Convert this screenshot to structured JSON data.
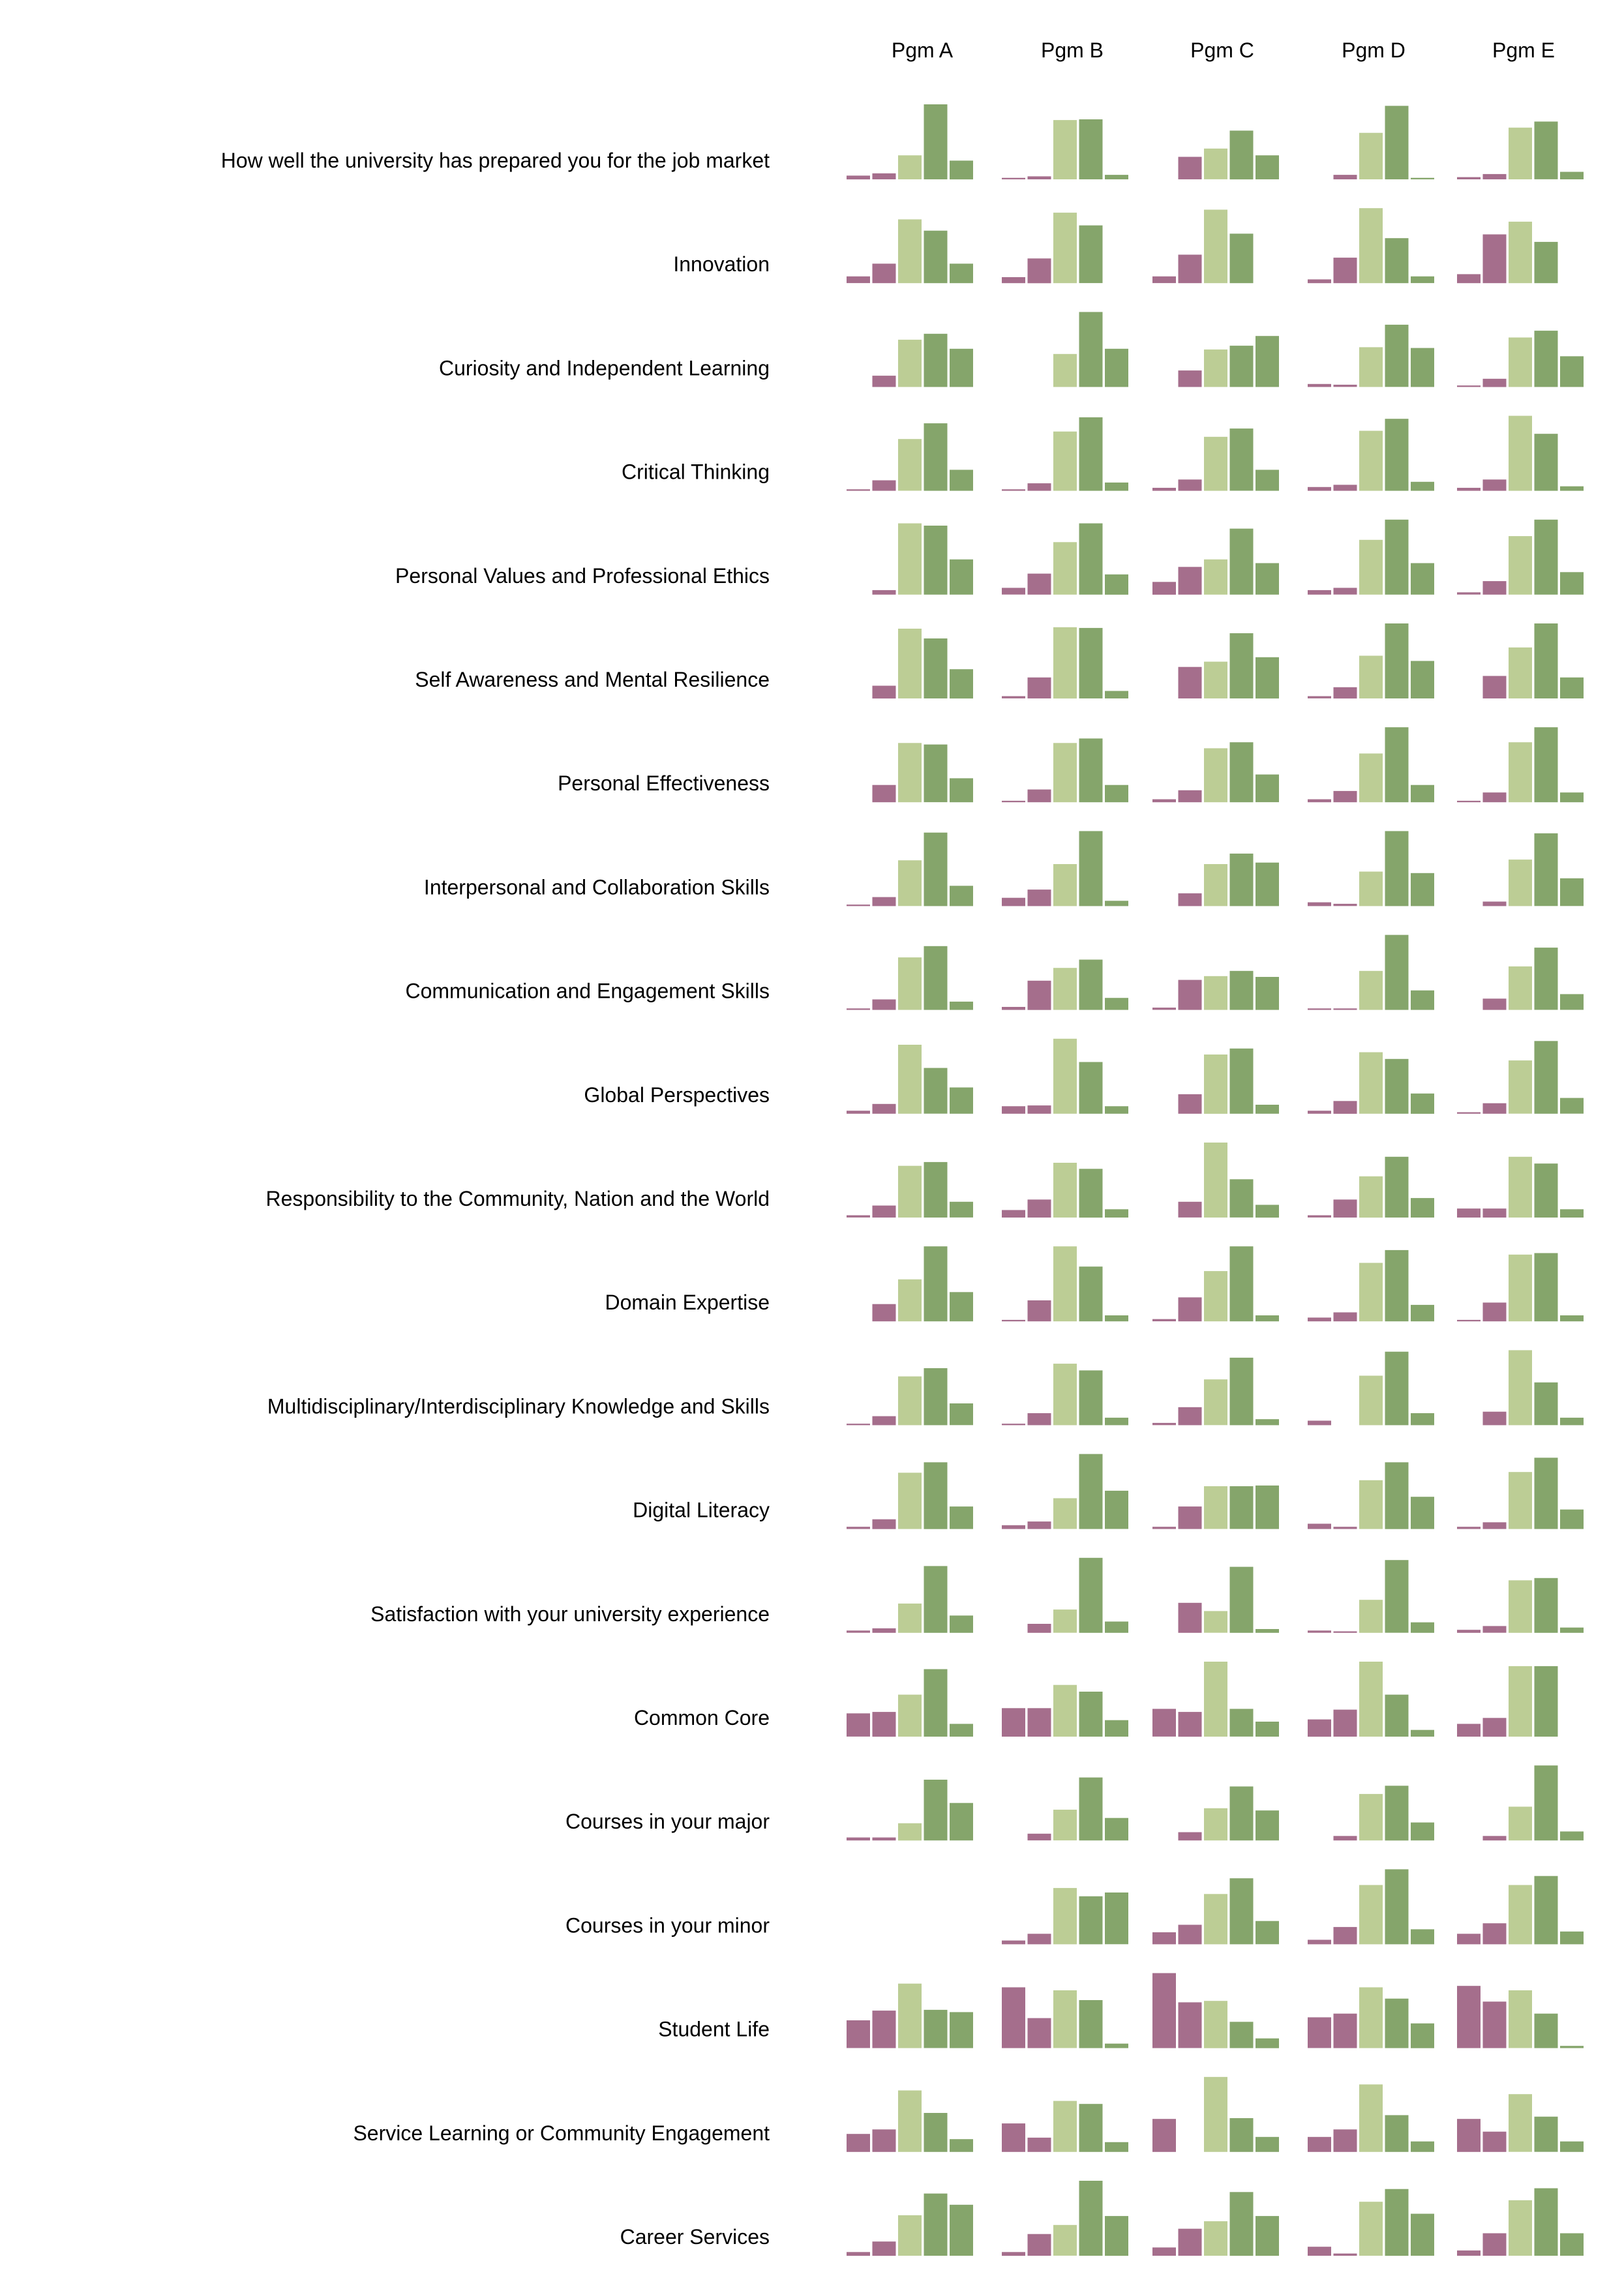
{
  "chart_data": {
    "type": "bar",
    "title": "",
    "colors": [
      "#a56e8c",
      "#a56e8c",
      "#bccd95",
      "#85a56b",
      "#85a56b"
    ],
    "columns": [
      "Pgm A",
      "Pgm B",
      "Pgm C",
      "Pgm D",
      "Pgm E"
    ],
    "rows": [
      {
        "label": "How well the university has prepared you for the job market",
        "values": [
          [
            5,
            8,
            32,
            100,
            25
          ],
          [
            2,
            4,
            79,
            80,
            6
          ],
          [
            0,
            30,
            41,
            65,
            32
          ],
          [
            0,
            6,
            62,
            98,
            2
          ],
          [
            3,
            7,
            69,
            77,
            10
          ]
        ]
      },
      {
        "label": "Innovation",
        "values": [
          [
            9,
            26,
            85,
            70,
            26
          ],
          [
            8,
            33,
            94,
            77,
            0
          ],
          [
            9,
            38,
            98,
            66,
            0
          ],
          [
            5,
            34,
            100,
            60,
            9
          ],
          [
            12,
            65,
            82,
            55,
            0
          ]
        ]
      },
      {
        "label": "Curiosity and Independent Learning",
        "values": [
          [
            0,
            15,
            63,
            71,
            51
          ],
          [
            0,
            0,
            44,
            100,
            51
          ],
          [
            0,
            22,
            50,
            55,
            68
          ],
          [
            4,
            3,
            53,
            83,
            52
          ],
          [
            2,
            11,
            66,
            75,
            41
          ]
        ]
      },
      {
        "label": "Critical Thinking",
        "values": [
          [
            2,
            14,
            69,
            90,
            28
          ],
          [
            2,
            10,
            79,
            98,
            11
          ],
          [
            4,
            15,
            72,
            83,
            28
          ],
          [
            5,
            8,
            80,
            96,
            12
          ],
          [
            4,
            15,
            100,
            76,
            6
          ]
        ]
      },
      {
        "label": "Personal Values and Professional Ethics",
        "values": [
          [
            0,
            6,
            95,
            92,
            47
          ],
          [
            9,
            28,
            70,
            95,
            27
          ],
          [
            17,
            37,
            47,
            88,
            42
          ],
          [
            6,
            9,
            73,
            100,
            42
          ],
          [
            3,
            18,
            78,
            100,
            30
          ]
        ]
      },
      {
        "label": "Self Awareness and Mental Resilience",
        "values": [
          [
            0,
            17,
            93,
            80,
            39
          ],
          [
            3,
            28,
            95,
            94,
            10
          ],
          [
            0,
            42,
            49,
            87,
            55
          ],
          [
            3,
            15,
            57,
            100,
            50
          ],
          [
            0,
            30,
            68,
            100,
            28
          ]
        ]
      },
      {
        "label": "Personal Effectiveness",
        "values": [
          [
            0,
            23,
            79,
            77,
            32
          ],
          [
            2,
            17,
            79,
            85,
            23
          ],
          [
            4,
            16,
            72,
            80,
            37
          ],
          [
            4,
            15,
            65,
            100,
            23
          ],
          [
            2,
            13,
            80,
            100,
            13
          ]
        ]
      },
      {
        "label": "Interpersonal and Collaboration Skills",
        "values": [
          [
            2,
            12,
            61,
            98,
            27
          ],
          [
            11,
            22,
            56,
            100,
            7
          ],
          [
            0,
            17,
            56,
            70,
            58
          ],
          [
            5,
            3,
            46,
            100,
            44
          ],
          [
            0,
            6,
            62,
            97,
            37
          ]
        ]
      },
      {
        "label": "Communication and Engagement Skills",
        "values": [
          [
            2,
            14,
            70,
            85,
            11
          ],
          [
            4,
            39,
            56,
            67,
            16
          ],
          [
            3,
            40,
            45,
            52,
            44
          ],
          [
            2,
            2,
            52,
            100,
            26
          ],
          [
            0,
            15,
            58,
            83,
            21
          ]
        ]
      },
      {
        "label": "Global Perspectives",
        "values": [
          [
            4,
            13,
            92,
            61,
            35
          ],
          [
            10,
            11,
            100,
            69,
            10
          ],
          [
            0,
            26,
            79,
            87,
            12
          ],
          [
            4,
            17,
            82,
            73,
            27
          ],
          [
            2,
            14,
            71,
            97,
            21
          ]
        ]
      },
      {
        "label": "Responsibility to the Community, Nation and the World",
        "values": [
          [
            3,
            16,
            69,
            74,
            21
          ],
          [
            10,
            24,
            73,
            65,
            11
          ],
          [
            0,
            21,
            100,
            51,
            17
          ],
          [
            3,
            24,
            55,
            81,
            26
          ],
          [
            12,
            12,
            81,
            72,
            11
          ]
        ]
      },
      {
        "label": "Domain Expertise",
        "values": [
          [
            0,
            23,
            56,
            100,
            39
          ],
          [
            2,
            28,
            100,
            73,
            8
          ],
          [
            3,
            32,
            67,
            100,
            8
          ],
          [
            5,
            12,
            78,
            95,
            22
          ],
          [
            2,
            25,
            89,
            91,
            8
          ]
        ]
      },
      {
        "label": "Multidisciplinary/Interdisciplinary Knowledge and Skills",
        "values": [
          [
            2,
            12,
            65,
            76,
            29
          ],
          [
            2,
            16,
            82,
            73,
            10
          ],
          [
            3,
            24,
            61,
            90,
            8
          ],
          [
            6,
            0,
            66,
            98,
            16
          ],
          [
            0,
            18,
            100,
            57,
            10
          ]
        ]
      },
      {
        "label": "Digital Literacy",
        "values": [
          [
            3,
            13,
            75,
            89,
            30
          ],
          [
            5,
            10,
            41,
            100,
            51
          ],
          [
            3,
            30,
            57,
            57,
            58
          ],
          [
            7,
            3,
            65,
            89,
            43
          ],
          [
            3,
            9,
            76,
            95,
            26
          ]
        ]
      },
      {
        "label": "Satisfaction with your university experience",
        "values": [
          [
            3,
            6,
            39,
            89,
            23
          ],
          [
            0,
            12,
            31,
            100,
            15
          ],
          [
            0,
            40,
            29,
            88,
            5
          ],
          [
            3,
            2,
            44,
            97,
            14
          ],
          [
            4,
            9,
            70,
            73,
            7
          ]
        ]
      },
      {
        "label": "Common Core",
        "values": [
          [
            31,
            33,
            56,
            90,
            17
          ],
          [
            38,
            38,
            69,
            60,
            22
          ],
          [
            37,
            33,
            100,
            37,
            20
          ],
          [
            23,
            36,
            100,
            56,
            9
          ],
          [
            17,
            25,
            94,
            94,
            0
          ]
        ]
      },
      {
        "label": "Courses in your major",
        "values": [
          [
            4,
            4,
            23,
            81,
            50
          ],
          [
            0,
            9,
            41,
            84,
            30
          ],
          [
            0,
            11,
            43,
            72,
            40
          ],
          [
            0,
            6,
            62,
            73,
            24
          ],
          [
            0,
            6,
            45,
            100,
            12
          ]
        ]
      },
      {
        "label": "Courses in your minor",
        "values": [
          [
            0,
            0,
            0,
            0,
            0
          ],
          [
            5,
            14,
            75,
            64,
            69
          ],
          [
            16,
            26,
            67,
            88,
            31
          ],
          [
            6,
            23,
            79,
            100,
            20
          ],
          [
            14,
            28,
            79,
            91,
            17
          ]
        ]
      },
      {
        "label": "Student Life",
        "values": [
          [
            37,
            50,
            86,
            51,
            48
          ],
          [
            81,
            40,
            77,
            64,
            6
          ],
          [
            100,
            61,
            63,
            35,
            13
          ],
          [
            41,
            46,
            81,
            66,
            33
          ],
          [
            83,
            62,
            77,
            46,
            3
          ]
        ]
      },
      {
        "label": "Service Learning or Community Engagement",
        "values": [
          [
            24,
            30,
            82,
            52,
            17
          ],
          [
            38,
            19,
            68,
            64,
            13
          ],
          [
            44,
            0,
            100,
            45,
            20
          ],
          [
            20,
            30,
            90,
            49,
            14
          ],
          [
            44,
            27,
            77,
            47,
            14
          ]
        ]
      },
      {
        "label": "Career Services",
        "values": [
          [
            5,
            19,
            54,
            83,
            68
          ],
          [
            5,
            29,
            41,
            100,
            53
          ],
          [
            11,
            36,
            46,
            85,
            53
          ],
          [
            12,
            3,
            72,
            89,
            56
          ],
          [
            7,
            30,
            74,
            90,
            30
          ]
        ]
      }
    ]
  }
}
